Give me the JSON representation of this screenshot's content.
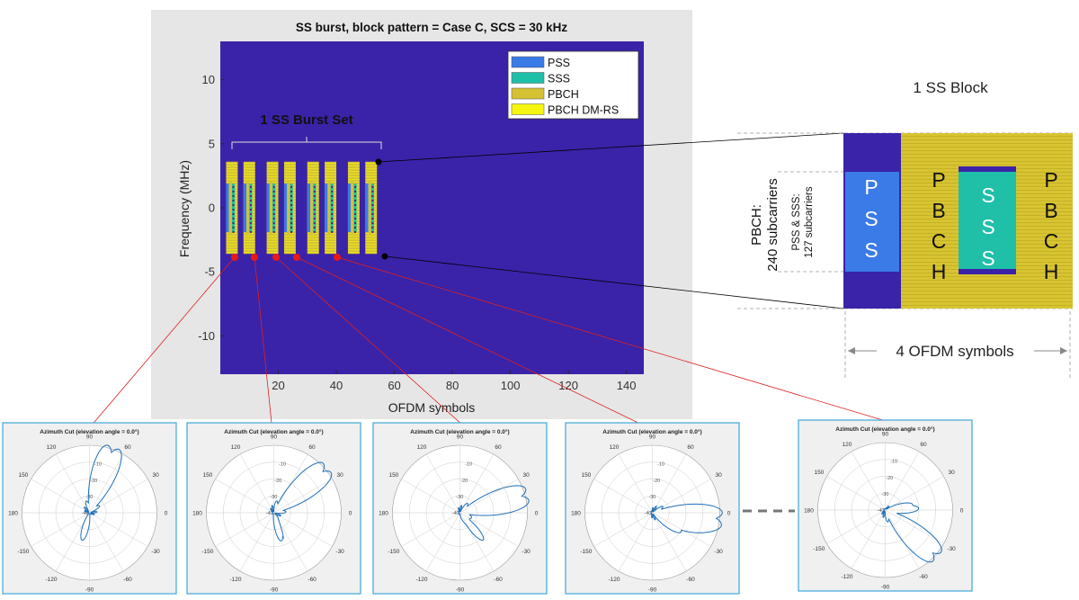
{
  "main_chart": {
    "title": "SS burst, block pattern = Case C, SCS = 30 kHz",
    "xlabel": "OFDM symbols",
    "ylabel": "Frequency (MHz)",
    "burst_label": "1 SS Burst Set",
    "legend": [
      {
        "label": "PSS",
        "color": "#3a7be8"
      },
      {
        "label": "SSS",
        "color": "#1fbfa8"
      },
      {
        "label": "PBCH",
        "color": "#d4c234"
      },
      {
        "label": "PBCH DM-RS",
        "color": "#f5f50f"
      }
    ],
    "bg_color": "#3a23a8",
    "frame_color": "#e6e6e6"
  },
  "chart_data": {
    "type": "heatmap",
    "title": "SS burst, block pattern = Case C, SCS = 30 kHz",
    "xlabel": "OFDM symbols",
    "ylabel": "Frequency (MHz)",
    "xlim": [
      0,
      146
    ],
    "ylim": [
      -13,
      13
    ],
    "xticks": [
      20,
      40,
      60,
      80,
      100,
      120,
      140
    ],
    "yticks": [
      10,
      5,
      0,
      -5,
      -10
    ],
    "ss_block_start_symbols": [
      2,
      8,
      16,
      22,
      30,
      36,
      44,
      50
    ],
    "ss_block_symbol_count": 4,
    "pbch_band_mhz": [
      -3.6,
      3.6
    ],
    "pss_sss_band_mhz": [
      -1.9,
      1.9
    ],
    "burst_set_span_symbols": [
      2,
      54
    ]
  },
  "ss_block": {
    "title": "1 SS Block",
    "pss_letters": [
      "P",
      "S",
      "S"
    ],
    "sss_letters": [
      "S",
      "S",
      "S"
    ],
    "pbch_letters": [
      "P",
      "B",
      "C",
      "H"
    ],
    "pbch_label_line1": "PBCH:",
    "pbch_label_line2": "240 subcarriers",
    "pss_sss_label_line1": "PSS & SSS:",
    "pss_sss_label_line2": "127 subcarriers",
    "ofdm_label": "4 OFDM symbols"
  },
  "polar_plots": [
    {
      "title": "Azimuth Cut (elevation angle = 0.0°)",
      "steer_deg": 70
    },
    {
      "title": "Azimuth Cut (elevation angle = 0.0°)",
      "steer_deg": 40
    },
    {
      "title": "Azimuth Cut (elevation angle = 0.0°)",
      "steer_deg": 15
    },
    {
      "title": "Azimuth Cut (elevation angle = 0.0°)",
      "steer_deg": -5
    },
    {
      "title": "Azimuth Cut (elevation angle = 0.0°)",
      "steer_deg": -42
    }
  ],
  "polar_axes": {
    "angle_labels": [
      "0",
      "30",
      "60",
      "90",
      "120",
      "150",
      "180",
      "-150",
      "-120",
      "-90",
      "-60",
      "-30"
    ],
    "radial_labels": [
      "-10",
      "-20",
      "-30",
      "-40"
    ]
  }
}
